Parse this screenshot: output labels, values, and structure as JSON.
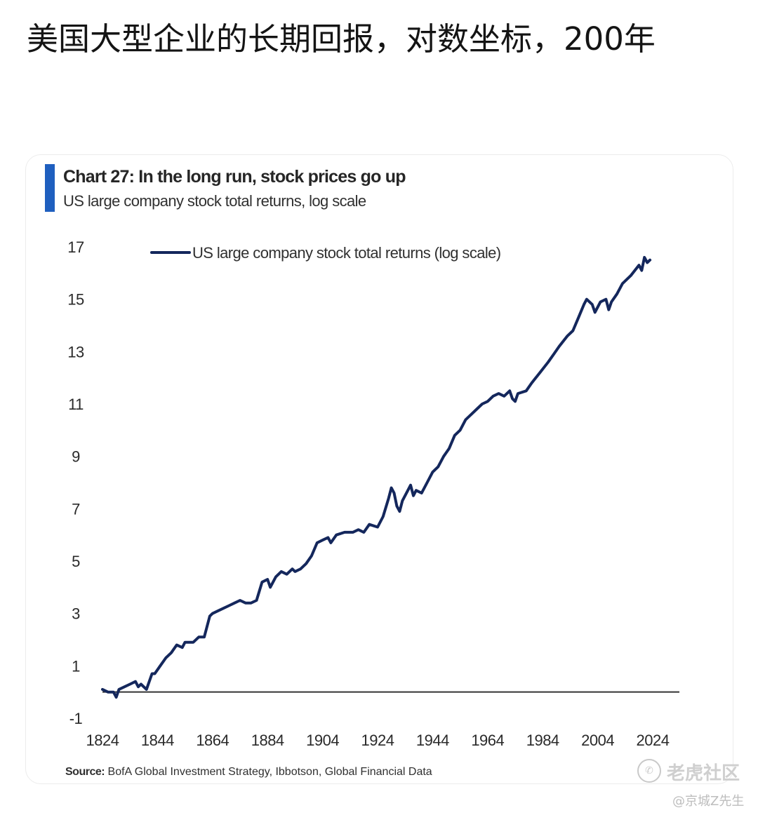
{
  "post": {
    "title": "美国大型企业的长期回报，对数坐标，200年"
  },
  "chart_card": {
    "title": "Chart 27: In the long run, stock prices go up",
    "subtitle": "US large company stock total returns, log scale",
    "source_label": "Source:",
    "source_text": " BofA Global Investment Strategy, Ibbotson, Global Financial Data"
  },
  "colors": {
    "line": "#14275c",
    "accent": "#1f5fbf",
    "baseline": "#333333"
  },
  "chart_data": {
    "type": "line",
    "title": "Chart 27: In the long run, stock prices go up",
    "subtitle": "US large company stock total returns, log scale",
    "xlabel": "",
    "ylabel": "",
    "xlim": [
      1824,
      2024
    ],
    "ylim": [
      -1,
      17
    ],
    "x_ticks": [
      1824,
      1844,
      1864,
      1884,
      1904,
      1924,
      1944,
      1964,
      1984,
      2004,
      2024
    ],
    "y_ticks": [
      17,
      15,
      13,
      11,
      9,
      7,
      5,
      3,
      1,
      -1
    ],
    "reference_line_y": 0,
    "grid": false,
    "legend_position": "top-left",
    "series": [
      {
        "name": "US large company stock total returns (log scale)",
        "x": [
          1824,
          1826,
          1828,
          1829,
          1830,
          1832,
          1834,
          1836,
          1837,
          1838,
          1840,
          1842,
          1843,
          1845,
          1847,
          1849,
          1851,
          1853,
          1854,
          1856,
          1857,
          1859,
          1861,
          1863,
          1864,
          1866,
          1868,
          1870,
          1872,
          1874,
          1876,
          1878,
          1880,
          1882,
          1884,
          1885,
          1887,
          1889,
          1891,
          1893,
          1894,
          1896,
          1898,
          1900,
          1902,
          1904,
          1906,
          1907,
          1909,
          1912,
          1915,
          1917,
          1919,
          1921,
          1924,
          1926,
          1928,
          1929,
          1930,
          1931,
          1932,
          1933,
          1935,
          1936,
          1937,
          1938,
          1940,
          1942,
          1944,
          1946,
          1948,
          1950,
          1952,
          1954,
          1956,
          1958,
          1960,
          1962,
          1964,
          1966,
          1968,
          1970,
          1972,
          1973,
          1974,
          1975,
          1978,
          1980,
          1983,
          1986,
          1988,
          1990,
          1993,
          1995,
          1997,
          1999,
          2000,
          2002,
          2003,
          2005,
          2007,
          2008,
          2009,
          2011,
          2013,
          2016,
          2019,
          2020,
          2021,
          2022,
          2023
        ],
        "y": [
          0.1,
          0.0,
          0.0,
          -0.2,
          0.1,
          0.2,
          0.3,
          0.4,
          0.2,
          0.3,
          0.1,
          0.7,
          0.7,
          1.0,
          1.3,
          1.5,
          1.8,
          1.7,
          1.9,
          1.9,
          1.9,
          2.1,
          2.1,
          2.9,
          3.0,
          3.1,
          3.2,
          3.3,
          3.4,
          3.5,
          3.4,
          3.4,
          3.5,
          4.2,
          4.3,
          4.0,
          4.4,
          4.6,
          4.5,
          4.7,
          4.6,
          4.7,
          4.9,
          5.2,
          5.7,
          5.8,
          5.9,
          5.7,
          6.0,
          6.1,
          6.1,
          6.2,
          6.1,
          6.4,
          6.3,
          6.7,
          7.4,
          7.8,
          7.6,
          7.1,
          6.9,
          7.3,
          7.7,
          7.9,
          7.5,
          7.7,
          7.6,
          8.0,
          8.4,
          8.6,
          9.0,
          9.3,
          9.8,
          10.0,
          10.4,
          10.6,
          10.8,
          11.0,
          11.1,
          11.3,
          11.4,
          11.3,
          11.5,
          11.2,
          11.1,
          11.4,
          11.5,
          11.8,
          12.2,
          12.6,
          12.9,
          13.2,
          13.6,
          13.8,
          14.3,
          14.8,
          15.0,
          14.8,
          14.5,
          14.9,
          15.0,
          14.6,
          14.9,
          15.2,
          15.6,
          15.9,
          16.3,
          16.1,
          16.6,
          16.4,
          16.5
        ]
      }
    ]
  },
  "watermark": {
    "brand": "老虎社区",
    "user": "@京城Z先生",
    "logo_glyph": "✆"
  }
}
